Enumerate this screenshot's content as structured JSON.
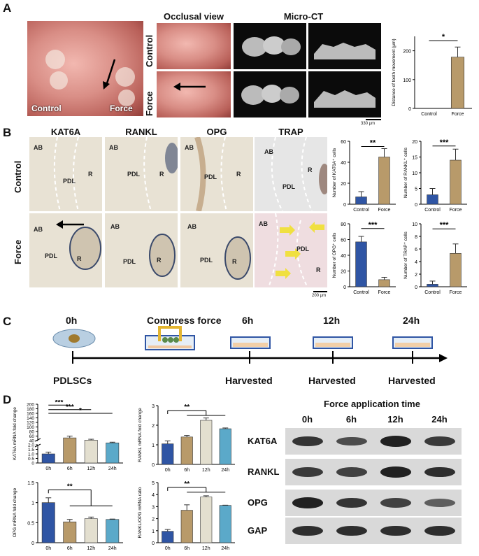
{
  "panels": {
    "A": {
      "letter": "A",
      "photo_labels": {
        "control": "Control",
        "force": "Force"
      },
      "headers": {
        "occlusal": "Occlusal view",
        "microct": "Micro-CT"
      },
      "row_labels": {
        "control": "Control",
        "force": "Force"
      },
      "scale_bar": "330 μm",
      "colors": {
        "bar": "#b89a6a"
      }
    },
    "B": {
      "letter": "B",
      "columns": [
        "KAT6A",
        "RANKL",
        "OPG",
        "TRAP"
      ],
      "row_labels": {
        "control": "Control",
        "force": "Force"
      },
      "tissue_labels": {
        "ab": "AB",
        "pdl": "PDL",
        "r": "R"
      },
      "scale_bar": "200 μm",
      "colors": {
        "control": "#2f55a4",
        "force": "#b89a6a",
        "arrow_yellow": "#f0e040"
      }
    },
    "C": {
      "letter": "C",
      "timepoints": [
        "0h",
        "6h",
        "12h",
        "24h"
      ],
      "compress_label": "Compress force",
      "start_label": "PDLSCs",
      "harvest_label": "Harvested"
    },
    "D": {
      "letter": "D",
      "blot": {
        "title": "Force application time",
        "lanes": [
          "0h",
          "6h",
          "12h",
          "24h"
        ],
        "proteins": [
          "KAT6A",
          "RANKL",
          "OPG",
          "GAP"
        ],
        "intensity": {
          "KAT6A": [
            0.8,
            0.6,
            0.95,
            0.75
          ],
          "RANKL": [
            0.75,
            0.7,
            0.95,
            0.85
          ],
          "OPG": [
            0.95,
            0.8,
            0.7,
            0.45
          ],
          "GAP": [
            0.85,
            0.85,
            0.85,
            0.85
          ]
        }
      },
      "colors": {
        "0h": "#2f55a4",
        "6h": "#b89a6a",
        "12h": "#e3dfcf",
        "24h": "#5ba9c9"
      }
    }
  },
  "chart_data": [
    {
      "type": "bar",
      "panel": "A",
      "categories": [
        "Control",
        "Force"
      ],
      "values": [
        0,
        178
      ],
      "errors": [
        0,
        35
      ],
      "title": "",
      "xlabel": "",
      "ylabel": "Distance of tooth movement (μm)",
      "ylim": [
        0,
        250
      ],
      "yticks": [
        0,
        100,
        200
      ],
      "significance": "*"
    },
    {
      "type": "bar",
      "panel": "B",
      "categories": [
        "Control",
        "Force"
      ],
      "values": [
        7,
        45
      ],
      "errors": [
        5,
        8
      ],
      "ylabel": "Number of KAT6A⁺ cells",
      "ylim": [
        0,
        60
      ],
      "yticks": [
        0,
        20,
        40,
        60
      ],
      "significance": "**"
    },
    {
      "type": "bar",
      "panel": "B",
      "categories": [
        "Control",
        "Force"
      ],
      "values": [
        3,
        14
      ],
      "errors": [
        2,
        3.5
      ],
      "ylabel": "Number of RANKL⁺ cells",
      "ylim": [
        0,
        20
      ],
      "yticks": [
        0,
        5,
        10,
        15,
        20
      ],
      "significance": "***"
    },
    {
      "type": "bar",
      "panel": "B",
      "categories": [
        "Control",
        "Force"
      ],
      "values": [
        57,
        9
      ],
      "errors": [
        7,
        3
      ],
      "ylabel": "Number of OPG⁺ cells",
      "ylim": [
        0,
        80
      ],
      "yticks": [
        0,
        20,
        40,
        60,
        80
      ],
      "significance": "***"
    },
    {
      "type": "bar",
      "panel": "B",
      "categories": [
        "Control",
        "Force"
      ],
      "values": [
        0.4,
        5.3
      ],
      "errors": [
        0.5,
        1.5
      ],
      "ylabel": "Number of TRAP⁺ cells",
      "ylim": [
        0,
        10
      ],
      "yticks": [
        0,
        2,
        4,
        6,
        8,
        10
      ],
      "significance": "***"
    },
    {
      "type": "bar",
      "panel": "D",
      "categories": [
        "0h",
        "6h",
        "12h",
        "24h"
      ],
      "values": [
        1.0,
        52,
        42,
        30
      ],
      "errors": [
        0.2,
        8,
        4,
        3
      ],
      "ylabel": "KAT6A mRNA fold change",
      "ylim": [
        0,
        200
      ],
      "yticks": [
        0,
        0.5,
        1.0,
        1.5,
        2.0,
        40,
        60,
        80,
        100,
        120,
        140,
        160,
        180,
        200
      ],
      "ytick_labels": [
        "0",
        "0.5",
        "1.0",
        "1.5",
        "2.0",
        "40",
        "60",
        "80",
        "100",
        "120",
        "140",
        "160",
        "180",
        "200"
      ],
      "broken_axis": true,
      "significance": [
        "***",
        "***",
        "*"
      ]
    },
    {
      "type": "bar",
      "panel": "D",
      "categories": [
        "0h",
        "6h",
        "12h",
        "24h"
      ],
      "values": [
        1.05,
        1.4,
        2.25,
        1.82
      ],
      "errors": [
        0.15,
        0.08,
        0.12,
        0.04
      ],
      "ylabel": "RANKL mRNA fold change",
      "ylim": [
        0,
        3
      ],
      "yticks": [
        0,
        1,
        2,
        3
      ],
      "significance": "**"
    },
    {
      "type": "bar",
      "panel": "D",
      "categories": [
        "0h",
        "6h",
        "12h",
        "24h"
      ],
      "values": [
        1.0,
        0.52,
        0.6,
        0.58
      ],
      "errors": [
        0.12,
        0.06,
        0.04,
        0.01
      ],
      "ylabel": "OPG mRNA fold change",
      "ylim": [
        0,
        1.5
      ],
      "yticks": [
        0,
        0.5,
        1.0,
        1.5
      ],
      "significance": "**"
    },
    {
      "type": "bar",
      "panel": "D",
      "categories": [
        "0h",
        "6h",
        "12h",
        "24h"
      ],
      "values": [
        0.95,
        2.7,
        3.8,
        3.1
      ],
      "errors": [
        0.15,
        0.45,
        0.1,
        0.02
      ],
      "ylabel": "RANKL/OPG mRNA ratio",
      "ylim": [
        0,
        5
      ],
      "yticks": [
        0,
        1,
        2,
        3,
        4,
        5
      ],
      "significance": "**"
    }
  ]
}
